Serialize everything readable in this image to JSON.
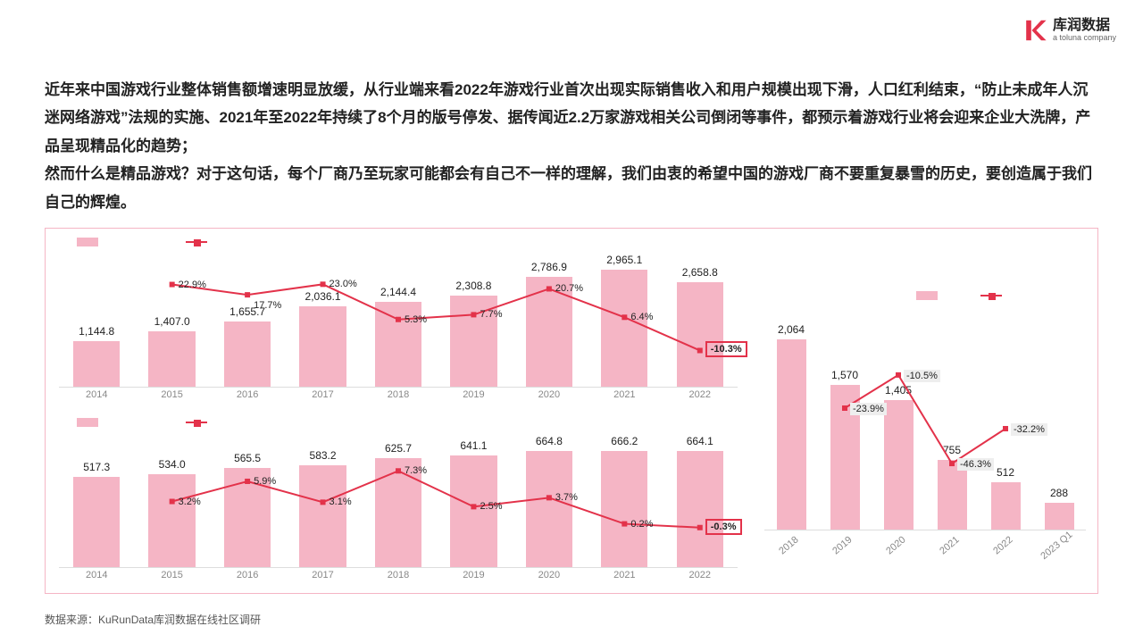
{
  "brand": {
    "cn": "库润数据",
    "en": "a toluna company"
  },
  "intro_p1": "近年来中国游戏行业整体销售额增速明显放缓，从行业端来看2022年游戏行业首次出现实际销售收入和用户规模出现下滑，人口红利结束，“防止未成年人沉迷网络游戏”法规的实施、2021年至2022年持续了8个月的版号停发、据传闻近2.2万家游戏相关公司倒闭等事件，都预示着游戏行业将会迎来企业大洗牌，产品呈现精品化的趋势；",
  "intro_p2": "然而什么是精品游戏？对于这句话，每个厂商乃至玩家可能都会有自己不一样的理解，我们由衷的希望中国的游戏厂商不要重复暴雪的历史，要创造属于我们自己的辉煌。",
  "footnote": "数据来源：KuRunData库润数据在线社区调研",
  "colors": {
    "bar": "#f5b5c5",
    "line": "#e3324a",
    "border": "#f5b5c5",
    "text": "#222222"
  },
  "chart_top": {
    "type": "bar+line",
    "years": [
      "2014",
      "2015",
      "2016",
      "2017",
      "2018",
      "2019",
      "2020",
      "2021",
      "2022"
    ],
    "values": [
      1144.8,
      1407.0,
      1655.7,
      2036.1,
      2144.4,
      2308.8,
      2786.9,
      2965.1,
      2658.8
    ],
    "value_labels": [
      "1,144.8",
      "1,407.0",
      "1,655.7",
      "2,036.1",
      "2,144.4",
      "2,308.8",
      "2,786.9",
      "2,965.1",
      "2,658.8"
    ],
    "growth": [
      null,
      22.9,
      17.7,
      23.0,
      5.3,
      7.7,
      20.7,
      6.4,
      -10.3
    ],
    "growth_labels": [
      null,
      "22.9%",
      "17.7%",
      "23.0%",
      "5.3%",
      "7.7%",
      "20.7%",
      "6.4%",
      "-10.3%"
    ],
    "ymax": 3100,
    "bar_width_ratio": 0.62
  },
  "chart_bottom": {
    "type": "bar+line",
    "years": [
      "2014",
      "2015",
      "2016",
      "2017",
      "2018",
      "2019",
      "2020",
      "2021",
      "2022"
    ],
    "values": [
      517.3,
      534.0,
      565.5,
      583.2,
      625.7,
      641.1,
      664.8,
      666.2,
      664.1
    ],
    "value_labels": [
      "517.3",
      "534.0",
      "565.5",
      "583.2",
      "625.7",
      "641.1",
      "664.8",
      "666.2",
      "664.1"
    ],
    "growth": [
      null,
      3.2,
      5.9,
      3.1,
      7.3,
      2.5,
      3.7,
      0.2,
      -0.3
    ],
    "growth_labels": [
      null,
      "3.2%",
      "5.9%",
      "3.1%",
      "7.3%",
      "2.5%",
      "3.7%",
      "0.2%",
      "-0.3%"
    ],
    "ymax": 700,
    "bar_width_ratio": 0.62
  },
  "chart_right": {
    "type": "bar+line",
    "years": [
      "2018",
      "2019",
      "2020",
      "2021",
      "2022",
      "2023 Q1"
    ],
    "values": [
      2064,
      1570,
      1405,
      755,
      512,
      288
    ],
    "value_labels": [
      "2,064",
      "1,570",
      "1,405",
      "755",
      "512",
      "288"
    ],
    "growth": [
      null,
      -23.9,
      -10.5,
      -46.3,
      -32.2,
      null
    ],
    "growth_labels": [
      null,
      "-23.9%",
      "-10.5%",
      "-46.3%",
      "-32.2%",
      null
    ],
    "ymax": 2200,
    "bar_width_ratio": 0.55
  }
}
